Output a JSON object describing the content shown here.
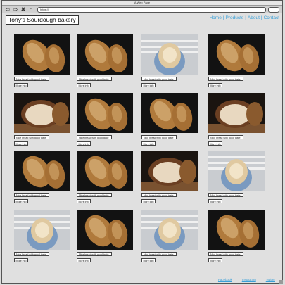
{
  "browser": {
    "window_title": "A Web Page",
    "url": "https://"
  },
  "site": {
    "title": "Tony's Sourdough bakery"
  },
  "nav": [
    "Home",
    "Products",
    "About",
    "Contact"
  ],
  "products": [
    {
      "photo": "bread-loaf-a",
      "caption": "Nice bread with good taste",
      "button": "More info"
    },
    {
      "photo": "bread-loaf-a",
      "caption": "Nice bread with good taste",
      "button": "More info"
    },
    {
      "photo": "bread-held",
      "caption": "Nice bread with good taste",
      "button": "More info"
    },
    {
      "photo": "bread-loaf-a",
      "caption": "Nice bread with good taste",
      "button": "More info"
    },
    {
      "photo": "bread-cut",
      "caption": "Nice bread with good taste",
      "button": "More info"
    },
    {
      "photo": "bread-loaf-a",
      "caption": "Nice bread with good taste",
      "button": "More info"
    },
    {
      "photo": "bread-loaf-a",
      "caption": "Nice bread with good taste",
      "button": "More info"
    },
    {
      "photo": "bread-cut",
      "caption": "Nice bread with good taste",
      "button": "More info"
    },
    {
      "photo": "bread-loaf-a",
      "caption": "Nice bread with good taste",
      "button": "More info"
    },
    {
      "photo": "bread-loaf-a",
      "caption": "Nice bread with good taste",
      "button": "More info"
    },
    {
      "photo": "bread-cut",
      "caption": "Nice bread with good taste",
      "button": "More info"
    },
    {
      "photo": "bread-held",
      "caption": "Nice bread with good taste",
      "button": "More info"
    },
    {
      "photo": "bread-held",
      "caption": "Nice bread with good taste",
      "button": "More info"
    },
    {
      "photo": "bread-loaf-a",
      "caption": "Nice bread with good taste",
      "button": "More info"
    },
    {
      "photo": "bread-held",
      "caption": "Nice bread with good taste",
      "button": "More info"
    },
    {
      "photo": "bread-loaf-a",
      "caption": "Nice bread with good taste",
      "button": "More info"
    }
  ],
  "footer": [
    "Facebook",
    "Instagram",
    "Twitter"
  ]
}
